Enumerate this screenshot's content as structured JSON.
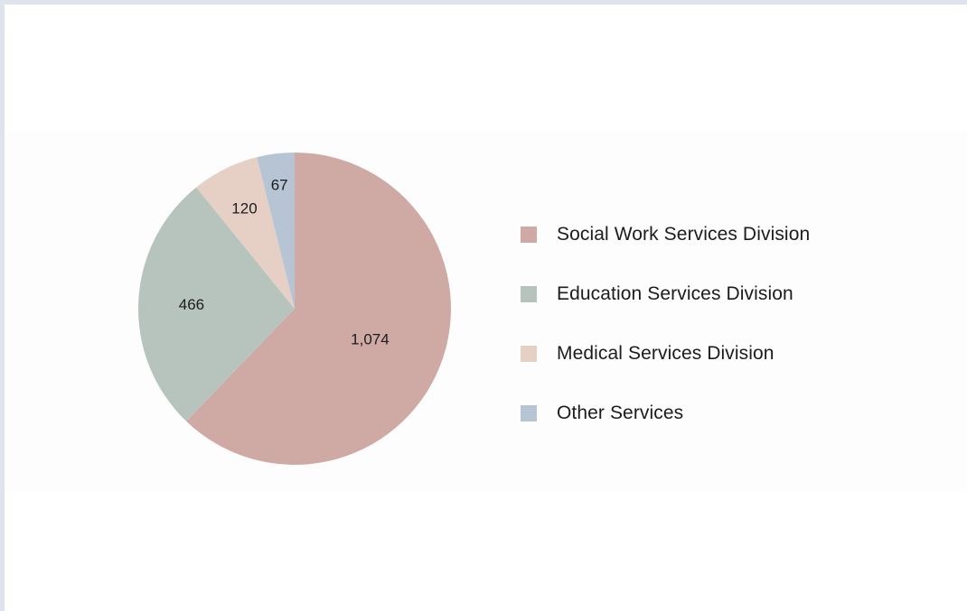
{
  "chart_data": {
    "type": "pie",
    "categories": [
      "Social Work Services Division",
      "Education Services Division",
      "Medical Services Division",
      "Other Services"
    ],
    "values": [
      1074,
      466,
      120,
      67
    ],
    "value_labels": [
      "1,074",
      "466",
      "120",
      "67"
    ],
    "colors": [
      "#cfaaa4",
      "#b7c4bd",
      "#e6d0c6",
      "#b6c4d4"
    ],
    "start_angle": "12 o'clock",
    "direction": "clockwise",
    "legend_placement": "right"
  }
}
